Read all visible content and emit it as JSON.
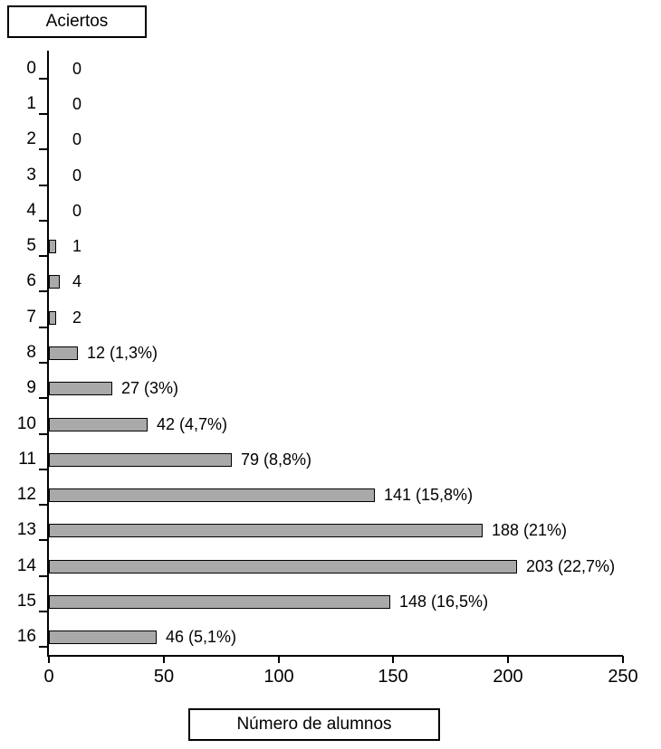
{
  "chart_data": {
    "type": "bar",
    "orientation": "horizontal",
    "title": "",
    "ylabel": "Aciertos",
    "xlabel": "Número de alumnos",
    "categories": [
      "0",
      "1",
      "2",
      "3",
      "4",
      "5",
      "6",
      "7",
      "8",
      "9",
      "10",
      "11",
      "12",
      "13",
      "14",
      "15",
      "16"
    ],
    "values": [
      0,
      0,
      0,
      0,
      0,
      1,
      4,
      2,
      12,
      27,
      42,
      79,
      141,
      188,
      203,
      148,
      46
    ],
    "bar_labels": [
      "0",
      "0",
      "0",
      "0",
      "0",
      "1",
      "4",
      "2",
      "12 (1,3%)",
      "27 (3%)",
      "42 (4,7%)",
      "79 (8,8%)",
      "141 (15,8%)",
      "188 (21%)",
      "203 (22,7%)",
      "148 (16,5%)",
      "46 (5,1%)"
    ],
    "xlim": [
      0,
      250
    ],
    "x_ticks": [
      "0",
      "50",
      "100",
      "150",
      "200",
      "250"
    ],
    "legend": false,
    "grid": false,
    "bar_fill": "#a9a9a9",
    "bar_border": "#000000",
    "axis_color": "#000000",
    "text_color": "#000000",
    "background": "#ffffff"
  }
}
